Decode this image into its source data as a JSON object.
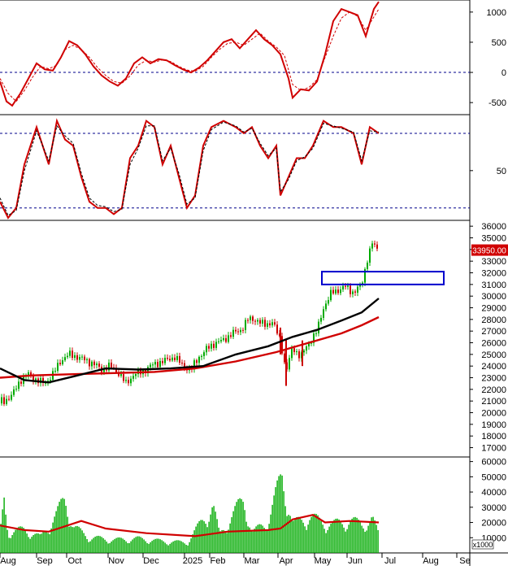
{
  "chart_data": [
    {
      "type": "line",
      "panel": "oscillator",
      "title": "",
      "ylim": [
        -700,
        1200
      ],
      "yticks": [
        1000,
        500,
        0,
        -500
      ],
      "ytick_labels": [
        "1000",
        "500",
        "0",
        "-500"
      ],
      "reference_lines": [
        0
      ],
      "grid": false,
      "series": [
        {
          "color": "#d00000",
          "style": "solid",
          "x": [
            0,
            8,
            15,
            25,
            35,
            45,
            55,
            65,
            75,
            85,
            95,
            105,
            115,
            125,
            135,
            145,
            155,
            165,
            175,
            185,
            195,
            205,
            215,
            225,
            235,
            245,
            255,
            265,
            275,
            285,
            295,
            305,
            315,
            325,
            335,
            345,
            355,
            360,
            370,
            380,
            390,
            400,
            410,
            420,
            430,
            440,
            450,
            460,
            466
          ],
          "values": [
            -150,
            -480,
            -550,
            -350,
            -100,
            150,
            50,
            30,
            250,
            520,
            450,
            300,
            100,
            -50,
            -150,
            -220,
            -100,
            150,
            250,
            150,
            220,
            200,
            120,
            50,
            0,
            80,
            200,
            350,
            500,
            550,
            400,
            550,
            700,
            550,
            450,
            300,
            -100,
            -420,
            -280,
            -300,
            -150,
            300,
            850,
            1050,
            1000,
            950,
            600,
            1050,
            1170
          ]
        },
        {
          "color": "#d00000",
          "style": "dashed",
          "x": [
            0,
            10,
            20,
            30,
            40,
            50,
            60,
            70,
            80,
            90,
            100,
            110,
            120,
            130,
            140,
            150,
            160,
            170,
            180,
            190,
            200,
            210,
            220,
            230,
            240,
            250,
            260,
            270,
            280,
            290,
            300,
            310,
            320,
            330,
            340,
            350,
            360,
            370,
            380,
            390,
            400,
            410,
            420,
            430,
            440,
            450,
            466
          ],
          "values": [
            -100,
            -350,
            -480,
            -300,
            -80,
            100,
            60,
            120,
            380,
            450,
            380,
            250,
            80,
            -50,
            -150,
            -180,
            -60,
            120,
            200,
            170,
            210,
            180,
            100,
            40,
            20,
            100,
            250,
            380,
            480,
            500,
            450,
            550,
            650,
            520,
            420,
            280,
            -200,
            -300,
            -250,
            -120,
            250,
            600,
            900,
            1000,
            930,
            700,
            1050
          ]
        }
      ]
    },
    {
      "type": "line",
      "panel": "stochastic",
      "title": "",
      "ylim": [
        10,
        95
      ],
      "yticks": [
        50
      ],
      "ytick_labels": [
        "50"
      ],
      "reference_lines": [
        80,
        20
      ],
      "grid": false,
      "series": [
        {
          "color": "#d00000",
          "style": "solid",
          "x": [
            0,
            10,
            20,
            30,
            45,
            60,
            70,
            80,
            90,
            100,
            110,
            120,
            130,
            140,
            150,
            160,
            170,
            180,
            190,
            200,
            210,
            220,
            230,
            240,
            250,
            260,
            275,
            290,
            300,
            310,
            320,
            330,
            340,
            345,
            355,
            365,
            375,
            385,
            398,
            410,
            420,
            435,
            445,
            455,
            466
          ],
          "values": [
            25,
            12,
            20,
            55,
            85,
            55,
            90,
            75,
            70,
            45,
            25,
            20,
            20,
            15,
            20,
            60,
            70,
            90,
            85,
            55,
            70,
            45,
            20,
            30,
            70,
            85,
            90,
            85,
            80,
            85,
            70,
            60,
            70,
            30,
            45,
            60,
            60,
            70,
            90,
            85,
            85,
            80,
            55,
            85,
            80
          ]
        },
        {
          "color": "#000000",
          "style": "dashed",
          "x": [
            0,
            10,
            20,
            30,
            45,
            60,
            70,
            80,
            90,
            100,
            110,
            120,
            130,
            140,
            150,
            160,
            170,
            180,
            190,
            200,
            210,
            220,
            230,
            240,
            250,
            260,
            275,
            290,
            300,
            310,
            320,
            330,
            340,
            345,
            355,
            365,
            375,
            385,
            398,
            410,
            420,
            435,
            445,
            455,
            466
          ],
          "values": [
            28,
            14,
            18,
            50,
            82,
            58,
            86,
            78,
            72,
            48,
            28,
            22,
            21,
            17,
            19,
            55,
            68,
            86,
            86,
            58,
            68,
            48,
            23,
            28,
            66,
            83,
            89,
            86,
            81,
            84,
            72,
            62,
            68,
            33,
            43,
            58,
            61,
            68,
            88,
            86,
            84,
            81,
            58,
            82,
            81
          ]
        }
      ]
    },
    {
      "type": "candlestick",
      "panel": "price",
      "title": "",
      "ylim": [
        16200,
        36500
      ],
      "yticks": [
        36000,
        35000,
        34000,
        33000,
        32000,
        31000,
        30000,
        29000,
        28000,
        27000,
        26000,
        25000,
        24000,
        23000,
        22000,
        21000,
        20000,
        19000,
        18000,
        17000
      ],
      "ytick_labels": [
        "36000",
        "35000",
        "",
        "33000",
        "32000",
        "31000",
        "30000",
        "29000",
        "28000",
        "27000",
        "26000",
        "25000",
        "24000",
        "23000",
        "22000",
        "21000",
        "20000",
        "19000",
        "18000",
        "17000"
      ],
      "last_price": 33950,
      "last_price_label": "33950.00",
      "colors": {
        "up": "#00aa00",
        "down": "#cc0000",
        "ma_short": "#000000",
        "ma_long": "#d00000",
        "box": "#0000cc"
      },
      "close": [
        {
          "x": 5,
          "v": 21000
        },
        {
          "x": 15,
          "v": 21500
        },
        {
          "x": 25,
          "v": 22800
        },
        {
          "x": 35,
          "v": 23300
        },
        {
          "x": 45,
          "v": 22800
        },
        {
          "x": 55,
          "v": 22500
        },
        {
          "x": 65,
          "v": 23300
        },
        {
          "x": 75,
          "v": 24500
        },
        {
          "x": 85,
          "v": 25000
        },
        {
          "x": 95,
          "v": 24800
        },
        {
          "x": 105,
          "v": 24500
        },
        {
          "x": 115,
          "v": 24200
        },
        {
          "x": 125,
          "v": 23700
        },
        {
          "x": 135,
          "v": 24000
        },
        {
          "x": 145,
          "v": 23500
        },
        {
          "x": 155,
          "v": 22500
        },
        {
          "x": 165,
          "v": 23300
        },
        {
          "x": 175,
          "v": 23500
        },
        {
          "x": 185,
          "v": 24000
        },
        {
          "x": 195,
          "v": 24300
        },
        {
          "x": 205,
          "v": 24500
        },
        {
          "x": 215,
          "v": 24800
        },
        {
          "x": 225,
          "v": 24000
        },
        {
          "x": 235,
          "v": 23700
        },
        {
          "x": 245,
          "v": 24800
        },
        {
          "x": 255,
          "v": 25500
        },
        {
          "x": 265,
          "v": 26000
        },
        {
          "x": 275,
          "v": 26200
        },
        {
          "x": 285,
          "v": 26800
        },
        {
          "x": 295,
          "v": 27000
        },
        {
          "x": 305,
          "v": 28000
        },
        {
          "x": 315,
          "v": 28000
        },
        {
          "x": 325,
          "v": 27500
        },
        {
          "x": 335,
          "v": 27800
        },
        {
          "x": 345,
          "v": 26200
        },
        {
          "x": 352,
          "v": 23500
        },
        {
          "x": 360,
          "v": 25600
        },
        {
          "x": 370,
          "v": 24800
        },
        {
          "x": 380,
          "v": 26000
        },
        {
          "x": 390,
          "v": 27000
        },
        {
          "x": 398,
          "v": 29000
        },
        {
          "x": 408,
          "v": 30300
        },
        {
          "x": 415,
          "v": 30500
        },
        {
          "x": 425,
          "v": 30800
        },
        {
          "x": 435,
          "v": 30300
        },
        {
          "x": 445,
          "v": 31000
        },
        {
          "x": 452,
          "v": 33200
        },
        {
          "x": 458,
          "v": 34500
        },
        {
          "x": 466,
          "v": 33950
        }
      ],
      "ma_short": [
        {
          "x": 0,
          "v": 23800
        },
        {
          "x": 30,
          "v": 22800
        },
        {
          "x": 60,
          "v": 22600
        },
        {
          "x": 90,
          "v": 23100
        },
        {
          "x": 130,
          "v": 23800
        },
        {
          "x": 170,
          "v": 23700
        },
        {
          "x": 210,
          "v": 23800
        },
        {
          "x": 250,
          "v": 24000
        },
        {
          "x": 290,
          "v": 25000
        },
        {
          "x": 330,
          "v": 25700
        },
        {
          "x": 360,
          "v": 26500
        },
        {
          "x": 390,
          "v": 27100
        },
        {
          "x": 420,
          "v": 27900
        },
        {
          "x": 445,
          "v": 28600
        },
        {
          "x": 466,
          "v": 29800
        }
      ],
      "ma_long": [
        {
          "x": 0,
          "v": 23000
        },
        {
          "x": 40,
          "v": 23200
        },
        {
          "x": 90,
          "v": 23300
        },
        {
          "x": 140,
          "v": 23400
        },
        {
          "x": 190,
          "v": 23500
        },
        {
          "x": 240,
          "v": 23800
        },
        {
          "x": 290,
          "v": 24400
        },
        {
          "x": 340,
          "v": 25200
        },
        {
          "x": 380,
          "v": 26000
        },
        {
          "x": 420,
          "v": 26800
        },
        {
          "x": 445,
          "v": 27500
        },
        {
          "x": 466,
          "v": 28200
        }
      ],
      "spikes": [
        {
          "x": 352,
          "high": 26300,
          "low": 22300
        },
        {
          "x": 345,
          "high": 27300,
          "low": 25000
        },
        {
          "x": 372,
          "high": 26200,
          "low": 24000
        }
      ],
      "highlight_box": {
        "x0": 396,
        "x1": 546,
        "y_top": 32100,
        "y_bottom": 31000
      }
    },
    {
      "type": "bar",
      "panel": "volume",
      "title": "",
      "ylim": [
        0,
        63000
      ],
      "yticks": [
        60000,
        50000,
        40000,
        30000,
        20000,
        10000
      ],
      "ytick_labels": [
        "60000",
        "50000",
        "40000",
        "30000",
        "20000",
        "10000"
      ],
      "unit_label": "x1000",
      "bar_color": "#00aa00",
      "ma_color": "#d00000",
      "volume_profile": [
        {
          "x": 0,
          "v": 14000
        },
        {
          "x": 5,
          "v": 40000
        },
        {
          "x": 10,
          "v": 16000
        },
        {
          "x": 30,
          "v": 18000
        },
        {
          "x": 50,
          "v": 12000
        },
        {
          "x": 70,
          "v": 30000
        },
        {
          "x": 80,
          "v": 42000
        },
        {
          "x": 90,
          "v": 20000
        },
        {
          "x": 110,
          "v": 12000
        },
        {
          "x": 140,
          "v": 10000
        },
        {
          "x": 170,
          "v": 11000
        },
        {
          "x": 200,
          "v": 9000
        },
        {
          "x": 230,
          "v": 8000
        },
        {
          "x": 262,
          "v": 36000
        },
        {
          "x": 270,
          "v": 14000
        },
        {
          "x": 300,
          "v": 42000
        },
        {
          "x": 310,
          "v": 15000
        },
        {
          "x": 330,
          "v": 25000
        },
        {
          "x": 347,
          "v": 60000
        },
        {
          "x": 352,
          "v": 45000
        },
        {
          "x": 360,
          "v": 22000
        },
        {
          "x": 380,
          "v": 28000
        },
        {
          "x": 395,
          "v": 24000
        },
        {
          "x": 410,
          "v": 22000
        },
        {
          "x": 430,
          "v": 25000
        },
        {
          "x": 445,
          "v": 22000
        },
        {
          "x": 458,
          "v": 26000
        },
        {
          "x": 466,
          "v": 14000
        }
      ],
      "volume_ma": [
        {
          "x": 0,
          "v": 18000
        },
        {
          "x": 30,
          "v": 15000
        },
        {
          "x": 60,
          "v": 14000
        },
        {
          "x": 100,
          "v": 21000
        },
        {
          "x": 130,
          "v": 16000
        },
        {
          "x": 180,
          "v": 13000
        },
        {
          "x": 240,
          "v": 11000
        },
        {
          "x": 280,
          "v": 14000
        },
        {
          "x": 330,
          "v": 15000
        },
        {
          "x": 345,
          "v": 16000
        },
        {
          "x": 360,
          "v": 22000
        },
        {
          "x": 385,
          "v": 25000
        },
        {
          "x": 400,
          "v": 20000
        },
        {
          "x": 430,
          "v": 21000
        },
        {
          "x": 466,
          "v": 20000
        }
      ]
    }
  ],
  "x_axis": {
    "labels": [
      {
        "text": "Aug",
        "x": 10
      },
      {
        "text": "Sep",
        "x": 55
      },
      {
        "text": "Oct",
        "x": 92
      },
      {
        "text": "Nov",
        "x": 143
      },
      {
        "text": "Dec",
        "x": 186
      },
      {
        "text": "2025",
        "x": 237
      },
      {
        "text": "Feb",
        "x": 268
      },
      {
        "text": "Mar",
        "x": 310
      },
      {
        "text": "Apr",
        "x": 352
      },
      {
        "text": "May",
        "x": 397
      },
      {
        "text": "Jun",
        "x": 437
      },
      {
        "text": "Jul",
        "x": 480
      },
      {
        "text": "Aug",
        "x": 530
      },
      {
        "text": "Se",
        "x": 572
      }
    ]
  }
}
